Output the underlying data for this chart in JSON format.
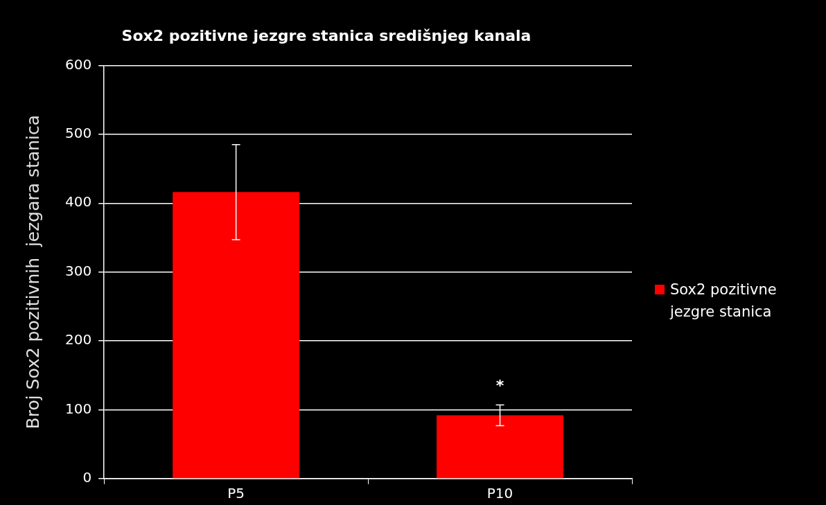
{
  "chart_data": {
    "type": "bar",
    "title": "Sox2 pozitivne jezgre stanica središnjeg kanala",
    "ylabel": "Broj Sox2 pozitivnih  jezgara stanica",
    "categories": [
      "P5",
      "P10"
    ],
    "series": [
      {
        "name": "Sox2 pozitivne jezgre stanica",
        "color": "#ff0000",
        "values": [
          416,
          92
        ],
        "errors": [
          69,
          15
        ]
      }
    ],
    "ylim": [
      0,
      600
    ],
    "yticks": [
      0,
      100,
      200,
      300,
      400,
      500,
      600
    ],
    "grid": "y",
    "legend": "right",
    "annotations": [
      "*"
    ]
  }
}
